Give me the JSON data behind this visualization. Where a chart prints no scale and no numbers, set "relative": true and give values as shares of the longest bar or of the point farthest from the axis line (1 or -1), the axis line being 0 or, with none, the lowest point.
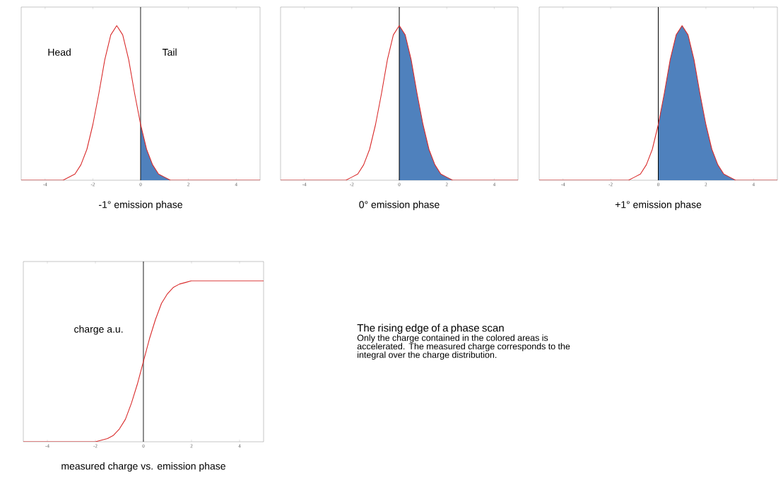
{
  "chart_data": [
    {
      "type": "line",
      "xlabel": "-1° emission phase",
      "relative": true,
      "xlim": [
        -5,
        5
      ],
      "xticks": [
        -4,
        -2,
        0,
        2,
        4
      ],
      "annotations": [
        "Head",
        "Tail"
      ],
      "ref_lines": [
        {
          "axis": "x",
          "value": 0,
          "color": "#000000"
        }
      ],
      "series": [
        {
          "type": "area",
          "color": "#4f81bd",
          "x": [
            0,
            0.25,
            0.5,
            0.75,
            1,
            1.25,
            1.5,
            5
          ],
          "values": [
            0.36,
            0.2,
            0.1,
            0.04,
            0.02,
            0,
            0,
            0
          ]
        },
        {
          "type": "line",
          "color": "#d92b2b",
          "x": [
            -5,
            -3.5,
            -3.25,
            -3,
            -2.75,
            -2.5,
            -2.25,
            -2,
            -1.75,
            -1.5,
            -1.25,
            -1,
            -0.75,
            -0.5,
            -0.25,
            0,
            0.25,
            0.5,
            0.75,
            1,
            1.25,
            1.5,
            5
          ],
          "values": [
            0,
            0,
            0,
            0.02,
            0.04,
            0.1,
            0.2,
            0.36,
            0.56,
            0.78,
            0.94,
            1,
            0.94,
            0.78,
            0.56,
            0.36,
            0.2,
            0.1,
            0.04,
            0.02,
            0,
            0,
            0
          ]
        }
      ]
    },
    {
      "type": "line",
      "xlabel": "0° emission phase",
      "relative": true,
      "xlim": [
        -5,
        5
      ],
      "xticks": [
        -4,
        -2,
        0,
        2,
        4
      ],
      "ref_lines": [
        {
          "axis": "x",
          "value": 0,
          "color": "#000000"
        }
      ],
      "series": [
        {
          "type": "area",
          "color": "#4f81bd",
          "x": [
            0,
            0.25,
            0.5,
            0.75,
            1,
            1.25,
            1.5,
            1.75,
            2,
            2.25,
            2.5,
            5
          ],
          "values": [
            1,
            0.94,
            0.78,
            0.56,
            0.36,
            0.2,
            0.1,
            0.04,
            0.02,
            0,
            0,
            0
          ]
        },
        {
          "type": "line",
          "color": "#d92b2b",
          "x": [
            -5,
            -2.5,
            -2.25,
            -2,
            -1.75,
            -1.5,
            -1.25,
            -1,
            -0.75,
            -0.5,
            -0.25,
            0,
            0.25,
            0.5,
            0.75,
            1,
            1.25,
            1.5,
            1.75,
            2,
            2.25,
            2.5,
            5
          ],
          "values": [
            0,
            0,
            0,
            0.02,
            0.04,
            0.1,
            0.2,
            0.36,
            0.56,
            0.78,
            0.94,
            1,
            0.94,
            0.78,
            0.56,
            0.36,
            0.2,
            0.1,
            0.04,
            0.02,
            0,
            0,
            0
          ]
        }
      ]
    },
    {
      "type": "line",
      "xlabel": "+1° emission phase",
      "relative": true,
      "xlim": [
        -5,
        5
      ],
      "xticks": [
        -4,
        -2,
        0,
        2,
        4
      ],
      "ref_lines": [
        {
          "axis": "x",
          "value": 0,
          "color": "#000000"
        }
      ],
      "series": [
        {
          "type": "area",
          "color": "#4f81bd",
          "x": [
            0,
            0.25,
            0.5,
            0.75,
            1,
            1.25,
            1.5,
            1.75,
            2,
            2.25,
            2.5,
            2.75,
            3,
            3.25,
            3.5,
            5
          ],
          "values": [
            0.36,
            0.56,
            0.78,
            0.94,
            1,
            0.94,
            0.78,
            0.56,
            0.36,
            0.2,
            0.1,
            0.04,
            0.02,
            0,
            0,
            0
          ]
        },
        {
          "type": "line",
          "color": "#d92b2b",
          "x": [
            -5,
            -1.5,
            -1.25,
            -1,
            -0.75,
            -0.5,
            -0.25,
            0,
            0.25,
            0.5,
            0.75,
            1,
            1.25,
            1.5,
            1.75,
            2,
            2.25,
            2.5,
            2.75,
            3,
            3.25,
            3.5,
            5
          ],
          "values": [
            0,
            0,
            0,
            0.02,
            0.04,
            0.1,
            0.2,
            0.36,
            0.56,
            0.78,
            0.94,
            1,
            0.94,
            0.78,
            0.56,
            0.36,
            0.2,
            0.1,
            0.04,
            0.02,
            0,
            0,
            0
          ]
        }
      ]
    },
    {
      "type": "line",
      "xlabel": "measured charge vs. emission phase",
      "relative": true,
      "xlim": [
        -5,
        5
      ],
      "xticks": [
        -4,
        -2,
        0,
        2,
        4
      ],
      "annotations": [
        "charge a.u."
      ],
      "ref_lines": [
        {
          "axis": "x",
          "value": 0,
          "color": "#000000"
        }
      ],
      "series": [
        {
          "color": "#d92b2b",
          "x": [
            -5,
            -2.5,
            -2,
            -1.75,
            -1.5,
            -1.25,
            -1,
            -0.75,
            -0.5,
            -0.25,
            0,
            0.25,
            0.5,
            0.75,
            1,
            1.25,
            1.5,
            1.75,
            2,
            2.5,
            5
          ],
          "values": [
            0,
            0,
            0,
            0.01,
            0.02,
            0.04,
            0.08,
            0.14,
            0.24,
            0.36,
            0.5,
            0.64,
            0.76,
            0.86,
            0.92,
            0.96,
            0.98,
            0.99,
            1,
            1,
            1
          ]
        }
      ]
    },
    {
      "type": "other",
      "title": "The rising edge of a phase scan",
      "annotations": [
        "Only the charge contained in the colored areas is accelerated. The measured charge corresponds to the integral over the charge distribution."
      ]
    }
  ]
}
